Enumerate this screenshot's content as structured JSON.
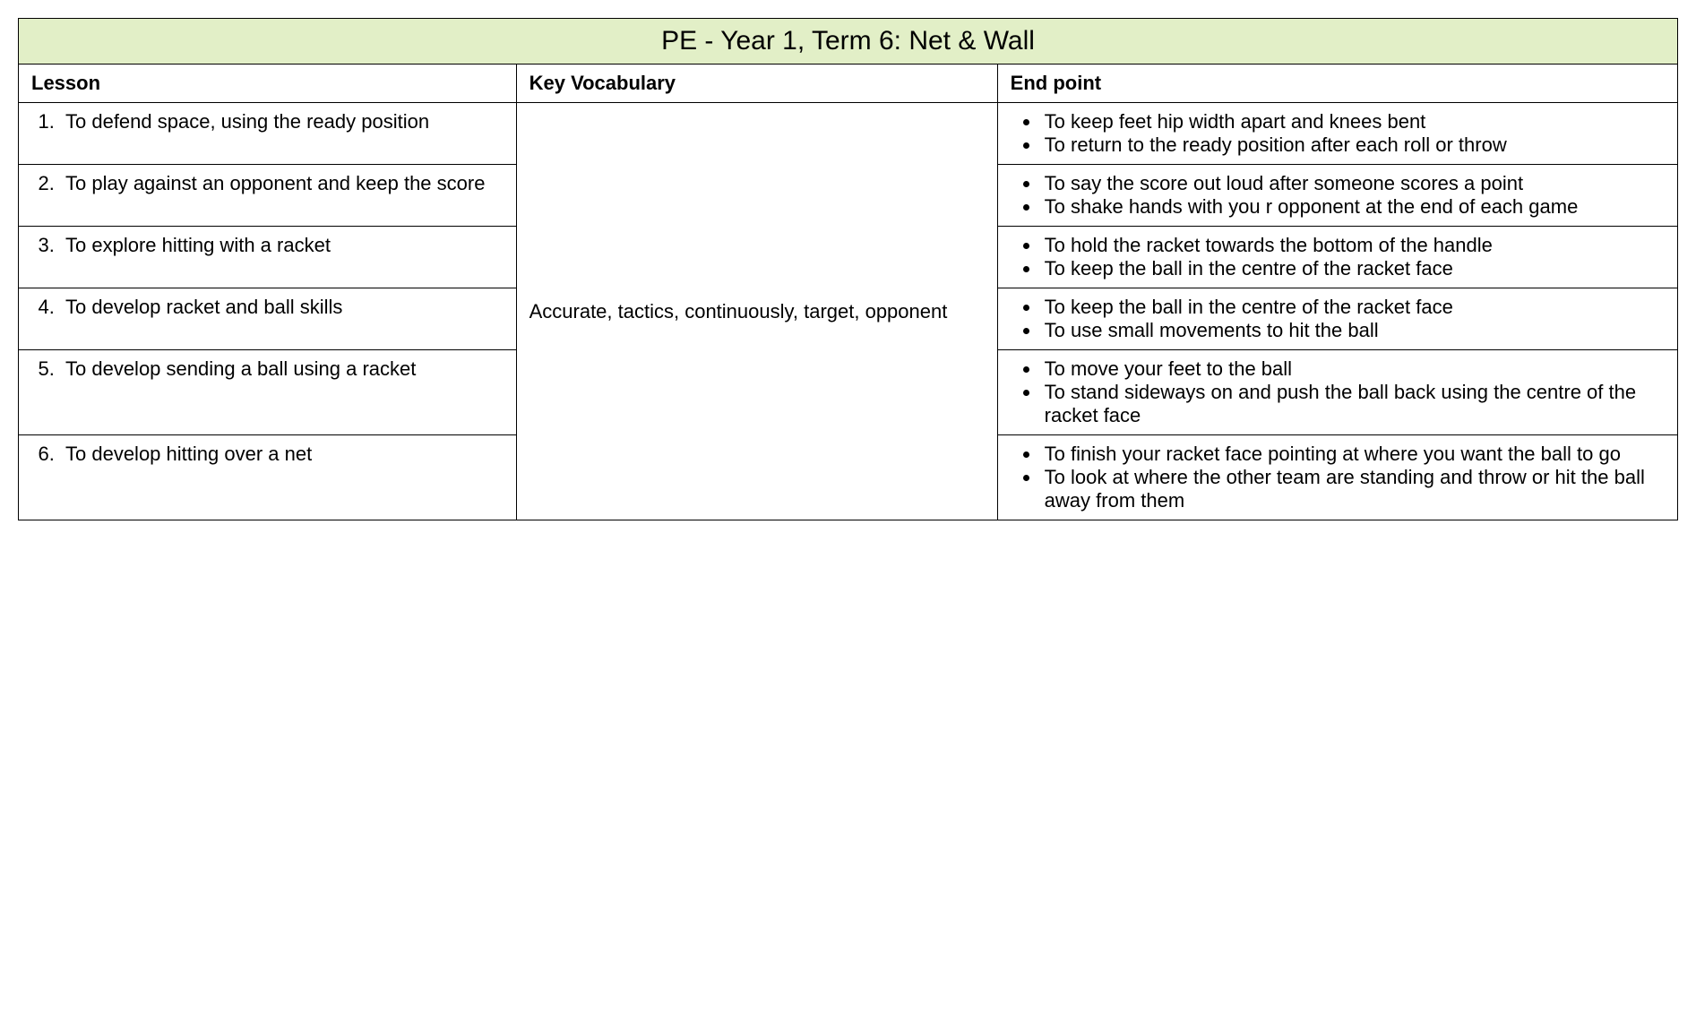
{
  "title": "PE - Year 1, Term 6: Net & Wall",
  "title_bg": "#e2efc7",
  "border_color": "#000000",
  "columns": {
    "lesson": "Lesson",
    "vocab": "Key Vocabulary",
    "endpoint": "End point"
  },
  "col_widths_pct": [
    30,
    29,
    41
  ],
  "vocabulary": "Accurate, tactics, continuously, target, opponent",
  "rows": [
    {
      "num": "1.",
      "lesson": "To defend space, using the ready position",
      "endpoints": [
        "To keep feet hip width apart and knees bent",
        "To return to the ready position after each roll or throw"
      ]
    },
    {
      "num": "2.",
      "lesson": "To play against an opponent and keep the score",
      "endpoints": [
        "To say the score out loud after someone scores a point",
        "To shake hands with you r opponent at the end of each game"
      ]
    },
    {
      "num": "3.",
      "lesson": "To explore hitting with a racket",
      "endpoints": [
        "To hold the racket towards the bottom of the handle",
        "To keep the ball in the centre of the racket face"
      ]
    },
    {
      "num": "4.",
      "lesson": "To develop racket and ball skills",
      "endpoints": [
        "To keep the ball in the centre of the racket face",
        "To use small movements to hit the ball"
      ]
    },
    {
      "num": "5.",
      "lesson": "To develop sending a ball using a racket",
      "endpoints": [
        "To move your feet to the ball",
        "To stand sideways on and push the ball back using the centre of the racket face"
      ]
    },
    {
      "num": "6.",
      "lesson": "To develop hitting over a net",
      "endpoints": [
        "To finish your racket face pointing at where you want the ball to go",
        "To look at where the other team are standing and throw or hit the ball away from them"
      ]
    }
  ]
}
